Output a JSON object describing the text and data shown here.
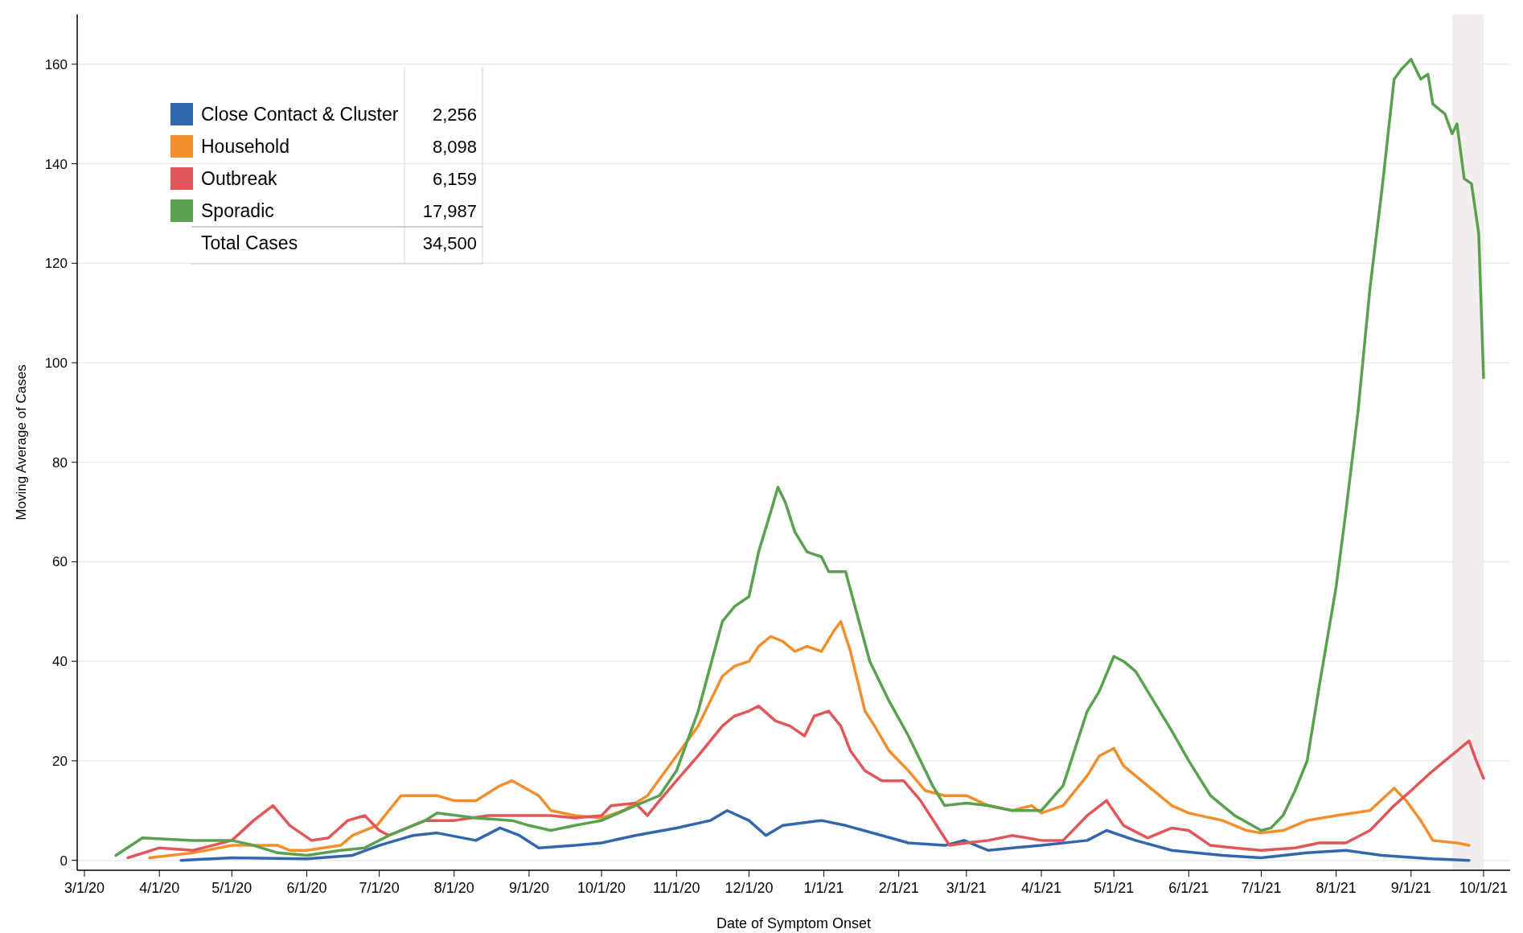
{
  "chart_data": {
    "type": "line",
    "xlabel": "Date of Symptom Onset",
    "ylabel": "Moving Average of Cases",
    "xlim": [
      "2020-02-27",
      "2021-10-12"
    ],
    "ylim": [
      -2,
      170
    ],
    "yticks": [
      0,
      20,
      40,
      60,
      80,
      100,
      120,
      140,
      160
    ],
    "xticks": [
      {
        "value": "2020-03-01",
        "label": "3/1/20"
      },
      {
        "value": "2020-04-01",
        "label": "4/1/20"
      },
      {
        "value": "2020-05-01",
        "label": "5/1/20"
      },
      {
        "value": "2020-06-01",
        "label": "6/1/20"
      },
      {
        "value": "2020-07-01",
        "label": "7/1/20"
      },
      {
        "value": "2020-08-01",
        "label": "8/1/20"
      },
      {
        "value": "2020-09-01",
        "label": "9/1/20"
      },
      {
        "value": "2020-10-01",
        "label": "10/1/20"
      },
      {
        "value": "2020-11-01",
        "label": "11/1/20"
      },
      {
        "value": "2020-12-01",
        "label": "12/1/20"
      },
      {
        "value": "2021-01-01",
        "label": "1/1/21"
      },
      {
        "value": "2021-02-01",
        "label": "2/1/21"
      },
      {
        "value": "2021-03-01",
        "label": "3/1/21"
      },
      {
        "value": "2021-04-01",
        "label": "4/1/21"
      },
      {
        "value": "2021-05-01",
        "label": "5/1/21"
      },
      {
        "value": "2021-06-01",
        "label": "6/1/21"
      },
      {
        "value": "2021-07-01",
        "label": "7/1/21"
      },
      {
        "value": "2021-08-01",
        "label": "8/1/21"
      },
      {
        "value": "2021-09-01",
        "label": "9/1/21"
      },
      {
        "value": "2021-10-01",
        "label": "10/1/21"
      }
    ],
    "grid": "y",
    "legend": "top left",
    "line_style": "solid",
    "marker": "none",
    "bands": [
      {
        "axis": "x",
        "from": "2021-09-18",
        "to": "2021-10-01",
        "color": "#f3eeee"
      }
    ],
    "annotations": [
      "2,256",
      "8,098",
      "6,159",
      "17,987",
      "Total Cases",
      "34,500"
    ],
    "series": [
      {
        "name": "Close Contact & Cluster",
        "color": "#3266ad",
        "x": [
          "2020-04-10",
          "2020-05-01",
          "2020-06-01",
          "2020-06-20",
          "2020-07-01",
          "2020-07-15",
          "2020-07-25",
          "2020-08-10",
          "2020-08-20",
          "2020-08-28",
          "2020-09-05",
          "2020-09-20",
          "2020-10-01",
          "2020-10-15",
          "2020-11-01",
          "2020-11-15",
          "2020-11-22",
          "2020-12-01",
          "2020-12-08",
          "2020-12-15",
          "2020-12-31",
          "2021-01-10",
          "2021-01-25",
          "2021-02-05",
          "2021-02-20",
          "2021-02-28",
          "2021-03-10",
          "2021-03-20",
          "2021-04-01",
          "2021-04-20",
          "2021-04-28",
          "2021-05-10",
          "2021-05-25",
          "2021-06-15",
          "2021-07-01",
          "2021-07-20",
          "2021-08-05",
          "2021-08-20",
          "2021-09-10",
          "2021-09-25"
        ],
        "values": [
          0,
          0.5,
          0.3,
          1,
          3,
          5,
          5.5,
          4,
          6.5,
          5,
          2.5,
          3,
          3.5,
          5,
          6.5,
          8,
          10,
          8,
          5,
          7,
          8,
          7,
          5,
          3.5,
          3,
          4,
          2,
          2.5,
          3,
          4,
          6,
          4,
          2,
          1,
          0.5,
          1.5,
          2,
          1,
          0.3,
          0
        ]
      },
      {
        "name": "Household",
        "color": "#f28e2b",
        "x": [
          "2020-03-28",
          "2020-04-15",
          "2020-05-01",
          "2020-05-10",
          "2020-05-20",
          "2020-05-25",
          "2020-06-01",
          "2020-06-15",
          "2020-06-20",
          "2020-06-30",
          "2020-07-05",
          "2020-07-10",
          "2020-07-25",
          "2020-08-01",
          "2020-08-10",
          "2020-08-20",
          "2020-08-25",
          "2020-09-05",
          "2020-09-10",
          "2020-09-20",
          "2020-10-01",
          "2020-10-10",
          "2020-10-20",
          "2020-11-01",
          "2020-11-10",
          "2020-11-20",
          "2020-11-25",
          "2020-12-01",
          "2020-12-05",
          "2020-12-10",
          "2020-12-15",
          "2020-12-20",
          "2020-12-25",
          "2020-12-31",
          "2021-01-05",
          "2021-01-08",
          "2021-01-12",
          "2021-01-18",
          "2021-01-22",
          "2021-01-28",
          "2021-02-05",
          "2021-02-12",
          "2021-02-20",
          "2021-03-01",
          "2021-03-10",
          "2021-03-20",
          "2021-03-28",
          "2021-04-01",
          "2021-04-10",
          "2021-04-20",
          "2021-04-25",
          "2021-05-01",
          "2021-05-05",
          "2021-05-15",
          "2021-05-25",
          "2021-06-01",
          "2021-06-15",
          "2021-06-25",
          "2021-07-01",
          "2021-07-10",
          "2021-07-20",
          "2021-08-01",
          "2021-08-15",
          "2021-08-25",
          "2021-08-30",
          "2021-09-05",
          "2021-09-10",
          "2021-09-20",
          "2021-09-25"
        ],
        "values": [
          0.5,
          1.5,
          3,
          3,
          3,
          2,
          2,
          3,
          5,
          7,
          10,
          13,
          13,
          12,
          12,
          15,
          16,
          13,
          10,
          9,
          8.5,
          10,
          13,
          21,
          27,
          37,
          39,
          40,
          43,
          45,
          44,
          42,
          43,
          42,
          46,
          48,
          42,
          30,
          27,
          22,
          18,
          14,
          13,
          13,
          11,
          10,
          11,
          9.5,
          11,
          17,
          21,
          22.5,
          19,
          15,
          11,
          9.5,
          8,
          6,
          5.5,
          6,
          8,
          9,
          10,
          14.5,
          12,
          8,
          4,
          3.5,
          3
        ]
      },
      {
        "name": "Outbreak",
        "color": "#e15759",
        "x": [
          "2020-03-19",
          "2020-04-01",
          "2020-04-15",
          "2020-05-01",
          "2020-05-10",
          "2020-05-18",
          "2020-05-25",
          "2020-06-03",
          "2020-06-10",
          "2020-06-18",
          "2020-06-25",
          "2020-07-01",
          "2020-07-05",
          "2020-07-20",
          "2020-08-01",
          "2020-08-15",
          "2020-08-25",
          "2020-09-10",
          "2020-09-20",
          "2020-10-01",
          "2020-10-05",
          "2020-10-15",
          "2020-10-20",
          "2020-10-25",
          "2020-11-01",
          "2020-11-10",
          "2020-11-20",
          "2020-11-25",
          "2020-12-01",
          "2020-12-05",
          "2020-12-12",
          "2020-12-18",
          "2020-12-24",
          "2020-12-28",
          "2021-01-03",
          "2021-01-08",
          "2021-01-12",
          "2021-01-18",
          "2021-01-25",
          "2021-02-03",
          "2021-02-10",
          "2021-02-18",
          "2021-02-22",
          "2021-03-01",
          "2021-03-10",
          "2021-03-20",
          "2021-04-01",
          "2021-04-10",
          "2021-04-20",
          "2021-04-28",
          "2021-05-05",
          "2021-05-15",
          "2021-05-25",
          "2021-06-01",
          "2021-06-10",
          "2021-06-20",
          "2021-07-01",
          "2021-07-15",
          "2021-07-25",
          "2021-08-05",
          "2021-08-15",
          "2021-08-25",
          "2021-09-01",
          "2021-09-10",
          "2021-09-15",
          "2021-09-20",
          "2021-09-25",
          "2021-09-28",
          "2021-10-01"
        ],
        "values": [
          0.5,
          2.5,
          2,
          4,
          8,
          11,
          7,
          4,
          4.5,
          8,
          9,
          6,
          5,
          8,
          8,
          9,
          9,
          9,
          8.5,
          9,
          11,
          11.5,
          9,
          12,
          16,
          21,
          27,
          29,
          30,
          31,
          28,
          27,
          25,
          29,
          30,
          27,
          22,
          18,
          16,
          16,
          12,
          6,
          3,
          3.5,
          4,
          5,
          4,
          4,
          9,
          12,
          7,
          4.5,
          6.5,
          6,
          3,
          2.5,
          2,
          2.5,
          3.5,
          3.5,
          6,
          11,
          14,
          18,
          20,
          22,
          24,
          20,
          16.5
        ]
      },
      {
        "name": "Sporadic",
        "color": "#59a14f",
        "x": [
          "2020-03-14",
          "2020-03-25",
          "2020-04-15",
          "2020-05-01",
          "2020-05-10",
          "2020-05-20",
          "2020-06-01",
          "2020-06-15",
          "2020-06-25",
          "2020-07-05",
          "2020-07-20",
          "2020-07-25",
          "2020-08-10",
          "2020-08-25",
          "2020-09-01",
          "2020-09-10",
          "2020-09-20",
          "2020-10-01",
          "2020-10-15",
          "2020-10-25",
          "2020-11-01",
          "2020-11-10",
          "2020-11-20",
          "2020-11-25",
          "2020-12-01",
          "2020-12-05",
          "2020-12-10",
          "2020-12-13",
          "2020-12-16",
          "2020-12-20",
          "2020-12-25",
          "2020-12-31",
          "2021-01-03",
          "2021-01-10",
          "2021-01-15",
          "2021-01-20",
          "2021-01-28",
          "2021-02-05",
          "2021-02-15",
          "2021-02-20",
          "2021-03-01",
          "2021-03-10",
          "2021-03-20",
          "2021-04-01",
          "2021-04-10",
          "2021-04-20",
          "2021-04-25",
          "2021-05-01",
          "2021-05-05",
          "2021-05-10",
          "2021-05-20",
          "2021-05-25",
          "2021-06-01",
          "2021-06-10",
          "2021-06-20",
          "2021-07-01",
          "2021-07-05",
          "2021-07-10",
          "2021-07-15",
          "2021-07-20",
          "2021-07-25",
          "2021-08-01",
          "2021-08-05",
          "2021-08-10",
          "2021-08-15",
          "2021-08-20",
          "2021-08-25",
          "2021-08-28",
          "2021-09-01",
          "2021-09-05",
          "2021-09-08",
          "2021-09-10",
          "2021-09-15",
          "2021-09-18",
          "2021-09-20",
          "2021-09-23",
          "2021-09-26",
          "2021-09-29",
          "2021-10-01"
        ],
        "values": [
          1,
          4.5,
          4,
          4,
          3,
          1.5,
          1,
          2,
          2.5,
          5,
          8,
          9.5,
          8.5,
          8,
          7,
          6,
          7,
          8,
          11,
          13,
          18,
          30,
          48,
          51,
          53,
          62,
          70,
          75,
          72,
          66,
          62,
          61,
          58,
          58,
          49,
          40,
          32,
          25,
          15,
          11,
          11.5,
          11,
          10,
          10,
          15,
          30,
          34,
          41,
          40,
          38,
          30,
          26,
          20,
          13,
          9,
          6,
          6.5,
          9,
          14,
          20,
          35,
          55,
          70,
          90,
          115,
          135,
          157,
          159,
          161,
          157,
          158,
          152,
          150,
          146,
          148,
          137,
          136,
          126,
          97
        ]
      }
    ]
  }
}
